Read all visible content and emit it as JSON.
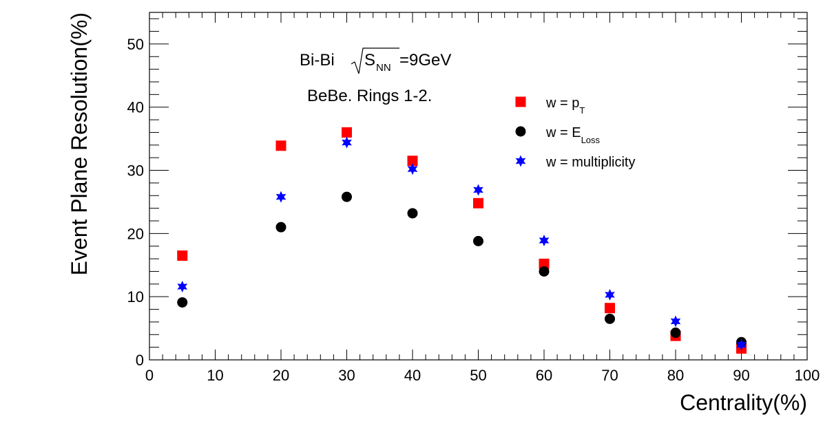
{
  "chart_data": {
    "type": "scatter",
    "xlabel": "Centrality(%)",
    "ylabel": "Event Plane Resolution(%)",
    "xlim": [
      0,
      100
    ],
    "ylim": [
      0,
      55
    ],
    "x_ticks": [
      0,
      10,
      20,
      30,
      40,
      50,
      60,
      70,
      80,
      90,
      100
    ],
    "y_ticks": [
      0,
      10,
      20,
      30,
      40,
      50
    ],
    "annotations": {
      "system": "Bi-Bi",
      "sqrt_s_symbol": "S",
      "sqrt_s_sub": "NN",
      "energy": "=9GeV",
      "detector": "BeBe. Rings 1-2."
    },
    "legend_position": "upper-right",
    "series": [
      {
        "name": "w = p_T",
        "legend_main": "w = p",
        "legend_sub": "T",
        "marker": "square",
        "color": "#ff0000",
        "x": [
          5,
          20,
          30,
          40,
          50,
          60,
          70,
          80,
          90
        ],
        "y": [
          16.5,
          33.9,
          36.0,
          31.5,
          24.8,
          15.2,
          8.2,
          3.8,
          1.8
        ]
      },
      {
        "name": "w = E_Loss",
        "legend_main": "w = E",
        "legend_sub": "Loss",
        "marker": "circle",
        "color": "#000000",
        "x": [
          5,
          20,
          30,
          40,
          50,
          60,
          70,
          80,
          90
        ],
        "y": [
          9.1,
          21.0,
          25.8,
          23.2,
          18.8,
          14.0,
          6.5,
          4.3,
          2.8
        ]
      },
      {
        "name": "w = multiplicity",
        "legend_main": "w = multiplicity",
        "legend_sub": "",
        "marker": "star",
        "color": "#0000ff",
        "x": [
          5,
          20,
          30,
          40,
          50,
          60,
          70,
          80,
          90
        ],
        "y": [
          11.6,
          25.8,
          34.4,
          30.2,
          26.9,
          18.9,
          10.3,
          6.1,
          2.4
        ]
      }
    ]
  }
}
